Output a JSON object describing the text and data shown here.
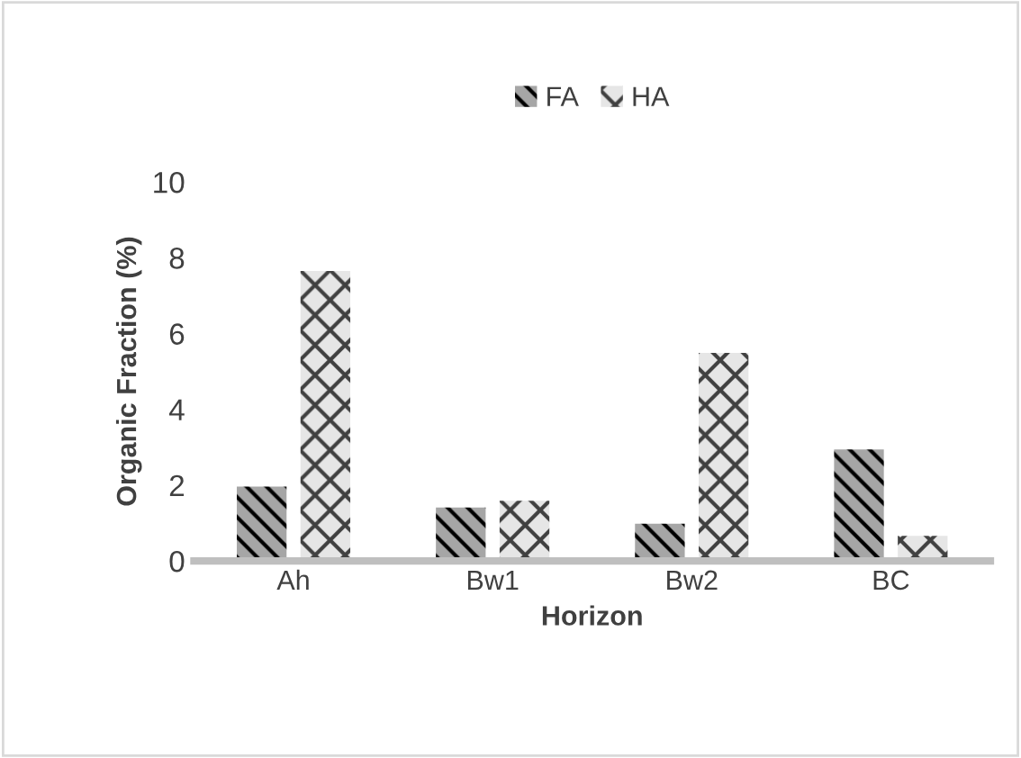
{
  "chart_data": {
    "type": "bar",
    "xlabel": "Horizon",
    "ylabel": "Organic Fraction (%)",
    "categories": [
      "Ah",
      "Bw1",
      "Bw2",
      "BC"
    ],
    "series": [
      {
        "name": "FA",
        "color": "#a6a6a6",
        "values": [
          1.96,
          1.41,
          0.98,
          2.94
        ]
      },
      {
        "name": "HA",
        "color": "#e6e6e6",
        "values": [
          7.65,
          1.59,
          5.49,
          0.66
        ]
      }
    ],
    "ylim": [
      0,
      10
    ],
    "yticks": [
      0,
      2,
      4,
      6,
      8,
      10
    ],
    "grid": false,
    "legend": "top"
  }
}
